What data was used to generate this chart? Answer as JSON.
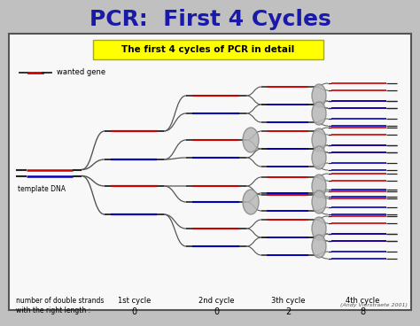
{
  "title": "PCR:  First 4 Cycles",
  "title_color": "#1a1aaa",
  "title_fontsize": 18,
  "subtitle": "The first 4 cycles of PCR in detail",
  "subtitle_bg": "#ffff00",
  "subtitle_fontsize": 7.5,
  "bg_outer": "#c0c0c0",
  "bg_inner": "#f8f8f8",
  "legend_label": "wanted gene",
  "template_label": "template DNA",
  "cycle_labels": [
    "1st cycle",
    "2nd cycle",
    "3th cycle",
    "4th cycle"
  ],
  "cycle_counts": [
    "0",
    "0",
    "2",
    "8"
  ],
  "bottom_label1": "number of double strands",
  "bottom_label2": "with the right length :",
  "credit": "(Andy Vierstraete 2001)",
  "strand_red": "#cc0000",
  "strand_blue": "#0000bb",
  "strand_black": "#222222",
  "ellipse_fill": "#b8b8b8",
  "ellipse_edge": "#888888"
}
